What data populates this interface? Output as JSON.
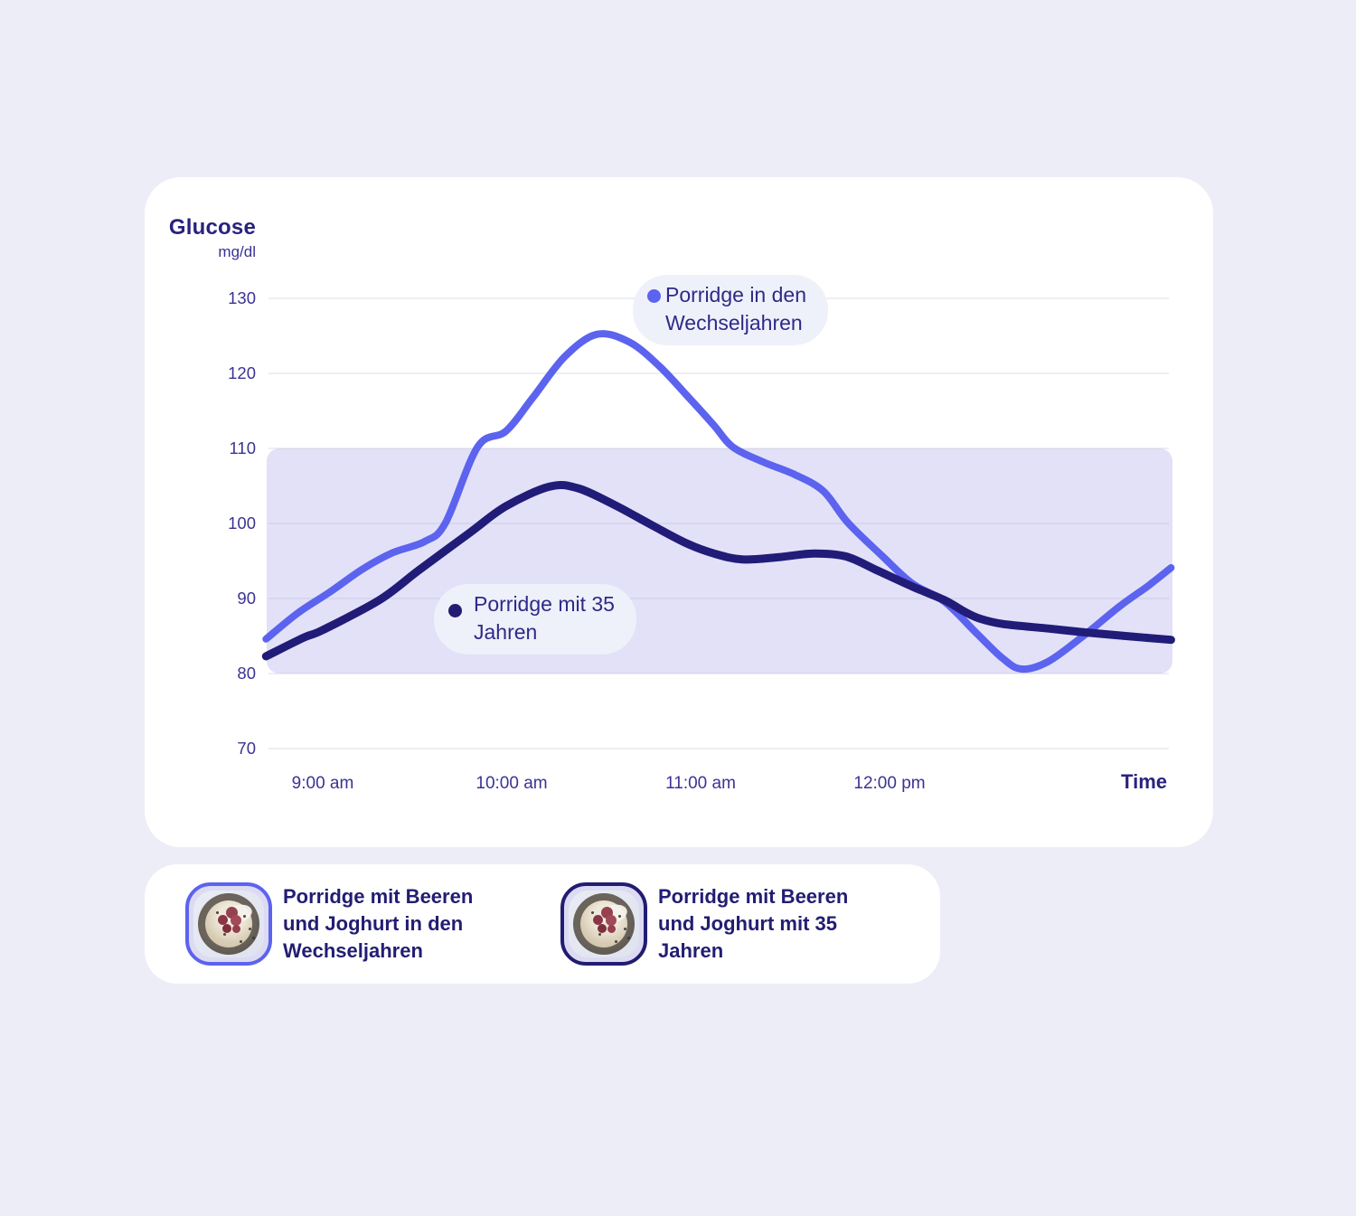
{
  "chart": {
    "title": "Glucose",
    "unit": "mg/dl",
    "time_label": "Time",
    "y_ticks": [
      "130",
      "120",
      "110",
      "100",
      "90",
      "80",
      "70"
    ],
    "x_ticks": [
      "9:00 am",
      "10:00 am",
      "11:00 am",
      "12:00 pm"
    ],
    "annotations": {
      "menopause": {
        "line1": "Porridge in den",
        "line2": "Wechseljahren"
      },
      "age35": {
        "line1": "Porridge mit 35",
        "line2": "Jahren"
      }
    },
    "colors": {
      "menopause_line": "#5c63ee",
      "age35_line": "#211c78",
      "target_band": "#e2e1f8",
      "gridline": "rgba(168,168,198,0.30)",
      "tick_text": "#3b3394",
      "axis_title_text": "#29227e"
    }
  },
  "chart_data": {
    "type": "line",
    "title": "Glucose mg/dl",
    "xlabel": "Time",
    "ylabel": "Glucose (mg/dl)",
    "ylim": [
      70,
      130
    ],
    "x_unit": "hours after 9:00 am (negative = before 9:00 am)",
    "x_tick_times": [
      "9:00 am",
      "10:00 am",
      "11:00 am",
      "12:00 pm"
    ],
    "grid": true,
    "target_band_mgdl": [
      80,
      110
    ],
    "legend_position": "inline-annotations",
    "series": [
      {
        "name": "Porridge in den Wechseljahren",
        "color": "#5c63ee",
        "peak": 125,
        "points": [
          [
            -0.3,
            84.6
          ],
          [
            -0.13,
            88.1
          ],
          [
            0.04,
            90.9
          ],
          [
            0.21,
            93.9
          ],
          [
            0.37,
            96.1
          ],
          [
            0.54,
            97.6
          ],
          [
            0.65,
            100.1
          ],
          [
            0.82,
            110.2
          ],
          [
            0.97,
            112.3
          ],
          [
            1.11,
            116.7
          ],
          [
            1.28,
            122.2
          ],
          [
            1.45,
            125.2
          ],
          [
            1.62,
            124.2
          ],
          [
            1.78,
            121.0
          ],
          [
            1.94,
            116.7
          ],
          [
            2.07,
            113.1
          ],
          [
            2.17,
            110.2
          ],
          [
            2.33,
            108.2
          ],
          [
            2.5,
            106.5
          ],
          [
            2.65,
            104.3
          ],
          [
            2.78,
            100.1
          ],
          [
            2.96,
            95.7
          ],
          [
            3.12,
            92.0
          ],
          [
            3.29,
            89.6
          ],
          [
            3.46,
            85.4
          ],
          [
            3.6,
            82.0
          ],
          [
            3.7,
            80.6
          ],
          [
            3.84,
            81.6
          ],
          [
            4.03,
            85.1
          ],
          [
            4.22,
            89.0
          ],
          [
            4.37,
            91.7
          ],
          [
            4.49,
            94.1
          ]
        ]
      },
      {
        "name": "Porridge mit 35 Jahren",
        "color": "#211c78",
        "peak": 105,
        "points": [
          [
            -0.3,
            82.3
          ],
          [
            -0.1,
            84.8
          ],
          [
            0.0,
            85.8
          ],
          [
            0.3,
            89.8
          ],
          [
            0.51,
            93.8
          ],
          [
            0.78,
            98.8
          ],
          [
            0.97,
            102.3
          ],
          [
            1.2,
            104.9
          ],
          [
            1.35,
            104.7
          ],
          [
            1.55,
            102.4
          ],
          [
            1.74,
            99.8
          ],
          [
            1.93,
            97.3
          ],
          [
            2.07,
            96.0
          ],
          [
            2.22,
            95.2
          ],
          [
            2.41,
            95.5
          ],
          [
            2.6,
            96.0
          ],
          [
            2.77,
            95.6
          ],
          [
            2.93,
            93.8
          ],
          [
            3.12,
            91.6
          ],
          [
            3.29,
            89.8
          ],
          [
            3.4,
            88.2
          ],
          [
            3.48,
            87.3
          ],
          [
            3.6,
            86.6
          ],
          [
            3.84,
            86.0
          ],
          [
            4.03,
            85.5
          ],
          [
            4.25,
            85.0
          ],
          [
            4.49,
            84.5
          ]
        ]
      }
    ]
  },
  "legend": {
    "items": [
      {
        "label": "Porridge mit Beeren und Joghurt in den Wechseljahren",
        "line1": "Porridge mit Beeren",
        "line2": "und Joghurt in den",
        "line3": "Wechseljahren",
        "border_color": "#5c63ee"
      },
      {
        "label": "Porridge mit Beeren und Joghurt mit 35 Jahren",
        "line1": "Porridge mit Beeren",
        "line2": "und Joghurt mit 35",
        "line3": "Jahren",
        "border_color": "#211d71"
      }
    ]
  }
}
